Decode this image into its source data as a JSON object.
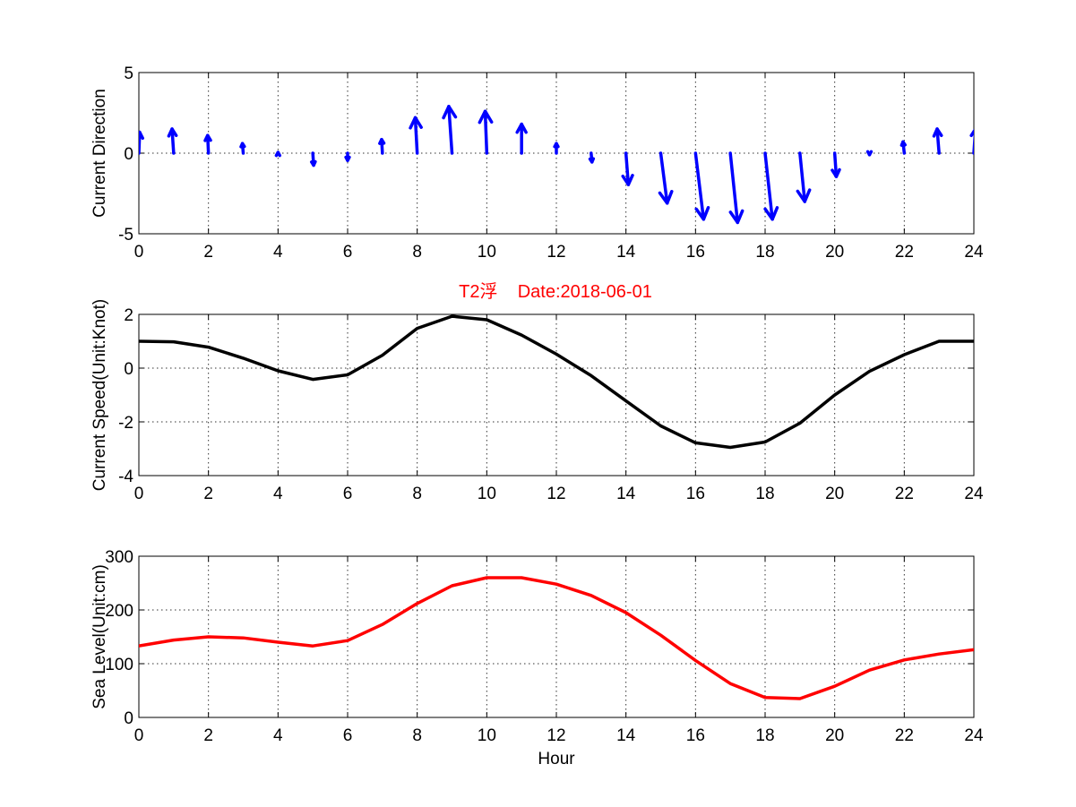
{
  "colors": {
    "direction": "#0000ff",
    "speed": "#000000",
    "sea_level": "#ff0000",
    "title": "#ff0000"
  },
  "title": "T2浮    Date:2018-06-01",
  "chart_data": [
    {
      "type": "quiver",
      "ylabel": "Current Direction",
      "xlabel": "",
      "xlim": [
        0,
        24
      ],
      "ylim": [
        -5,
        5
      ],
      "grid": true,
      "x": [
        0,
        1,
        2,
        3,
        4,
        5,
        6,
        7,
        8,
        9,
        10,
        11,
        12,
        13,
        14,
        15,
        16,
        17,
        18,
        19,
        20,
        21,
        22,
        23,
        24
      ],
      "u": [
        0.05,
        -0.1,
        -0.05,
        -0.05,
        0.0,
        0.05,
        0.0,
        -0.05,
        -0.12,
        -0.2,
        -0.1,
        0.0,
        0.0,
        0.05,
        0.15,
        0.4,
        0.5,
        0.45,
        0.45,
        0.3,
        0.1,
        0.0,
        -0.08,
        -0.12,
        0.1
      ],
      "v": [
        1.3,
        1.5,
        1.1,
        0.6,
        0.05,
        -0.75,
        -0.45,
        0.85,
        2.2,
        2.9,
        2.6,
        1.8,
        0.6,
        -0.55,
        -1.95,
        -3.1,
        -4.1,
        -4.3,
        -4.1,
        -3.0,
        -1.45,
        -0.1,
        0.7,
        1.5,
        1.5
      ],
      "xticks": [
        "0",
        "2",
        "4",
        "6",
        "8",
        "10",
        "12",
        "14",
        "16",
        "18",
        "20",
        "22",
        "24"
      ],
      "yticks": [
        "5",
        "0",
        "-5"
      ]
    },
    {
      "type": "line",
      "ylabel": "Current Speed(Unit:Knot)",
      "xlabel": "",
      "xlim": [
        0,
        24
      ],
      "ylim": [
        -4,
        2
      ],
      "grid": true,
      "x": [
        0,
        1,
        2,
        3,
        4,
        5,
        6,
        7,
        8,
        9,
        10,
        11,
        12,
        13,
        14,
        15,
        16,
        17,
        18,
        19,
        20,
        21,
        22,
        23,
        24
      ],
      "values": [
        1.0,
        0.98,
        0.78,
        0.37,
        -0.1,
        -0.42,
        -0.25,
        0.48,
        1.48,
        1.93,
        1.8,
        1.23,
        0.52,
        -0.28,
        -1.22,
        -2.15,
        -2.78,
        -2.95,
        -2.75,
        -2.05,
        -1.0,
        -0.12,
        0.5,
        1.0,
        1.0
      ],
      "xticks": [
        "0",
        "2",
        "4",
        "6",
        "8",
        "10",
        "12",
        "14",
        "16",
        "18",
        "20",
        "22",
        "24"
      ],
      "yticks": [
        "2",
        "0",
        "-2",
        "-4"
      ]
    },
    {
      "type": "line",
      "ylabel": "Sea Level(Unit:cm)",
      "xlabel": "Hour",
      "xlim": [
        0,
        24
      ],
      "ylim": [
        0,
        300
      ],
      "grid": true,
      "x": [
        0,
        1,
        2,
        3,
        4,
        5,
        6,
        7,
        8,
        9,
        10,
        11,
        12,
        13,
        14,
        15,
        16,
        17,
        18,
        19,
        20,
        21,
        22,
        23,
        24
      ],
      "values": [
        133,
        144,
        150,
        148,
        140,
        133,
        143,
        173,
        212,
        245,
        260,
        260,
        248,
        227,
        195,
        153,
        106,
        63,
        37,
        35,
        58,
        88,
        107,
        118,
        126
      ],
      "xticks": [
        "0",
        "2",
        "4",
        "6",
        "8",
        "10",
        "12",
        "14",
        "16",
        "18",
        "20",
        "22",
        "24"
      ],
      "yticks": [
        "300",
        "200",
        "100",
        "0"
      ]
    }
  ]
}
